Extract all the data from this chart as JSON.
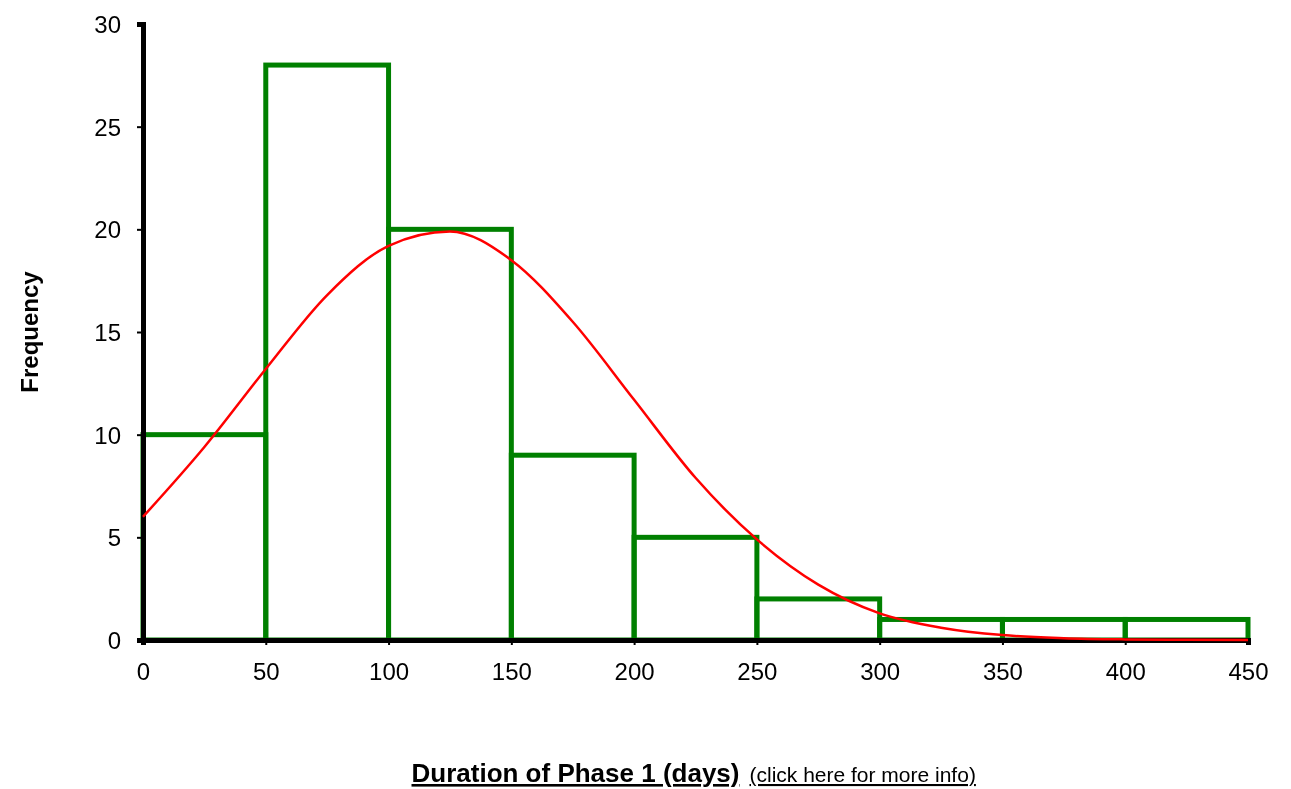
{
  "chart_data": {
    "type": "histogram",
    "xlabel": "Duration of Phase 1 (days)",
    "ylabel": "Frequency",
    "annotations": [
      "(click here for more info)"
    ],
    "bins": [
      0,
      50,
      100,
      150,
      200,
      250,
      300,
      350,
      400,
      450
    ],
    "series": [
      {
        "color": "#008000",
        "values": [
          10,
          28,
          20,
          9,
          5,
          2,
          1,
          1,
          1
        ]
      },
      {
        "type": "line",
        "color": "#ff0000",
        "x": [
          0,
          25,
          50,
          75,
          100,
          125,
          150,
          175,
          200,
          225,
          250,
          275,
          300,
          325,
          350,
          375,
          400,
          425,
          450
        ],
        "values": [
          6.0,
          9.4,
          13.2,
          16.8,
          19.2,
          19.9,
          18.5,
          15.5,
          11.7,
          7.9,
          4.9,
          2.7,
          1.3,
          0.6,
          0.24,
          0.09,
          0.03,
          0.01,
          0
        ]
      }
    ],
    "xlim": [
      0,
      450
    ],
    "xticks": [
      0,
      50,
      100,
      150,
      200,
      250,
      300,
      350,
      400,
      450
    ],
    "ylim": [
      0,
      30
    ],
    "yticks": [
      0,
      5,
      10,
      15,
      20,
      25,
      30
    ],
    "grid": false
  }
}
